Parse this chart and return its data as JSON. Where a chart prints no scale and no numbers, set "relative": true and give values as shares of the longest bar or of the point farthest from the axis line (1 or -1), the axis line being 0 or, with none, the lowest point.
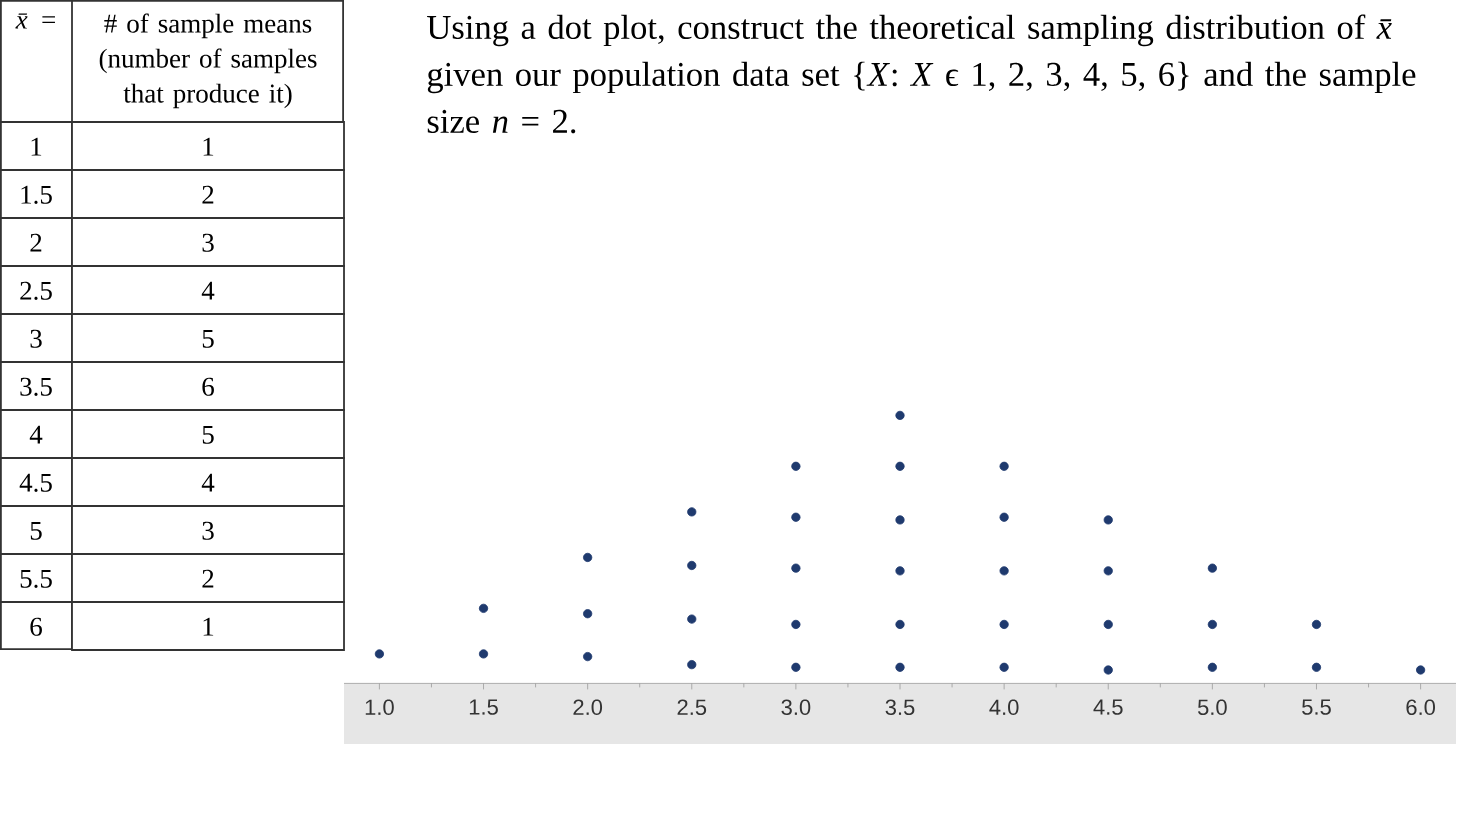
{
  "chart_data": [
    {
      "type": "heatmap",
      "ylabel": "*x̄* =",
      "categories": [
        "# of sample means (number of samples that produce it)"
      ],
      "y_categories": [
        "1",
        "1.5",
        "2",
        "2.5",
        "3",
        "3.5",
        "4",
        "4.5",
        "5",
        "5.5",
        "6"
      ],
      "cells": [
        [
          1
        ],
        [
          2
        ],
        [
          3
        ],
        [
          4
        ],
        [
          5
        ],
        [
          6
        ],
        [
          5
        ],
        [
          4
        ],
        [
          3
        ],
        [
          2
        ],
        [
          1
        ]
      ],
      "data_labels": true
    },
    {
      "type": "scatter",
      "title": "Using a dot plot, construct the theoretical sampling distribution of *x̄* given our population data set {*X*: *X* ϵ 1, 2, 3, 4, 5, 6} and the sample size *n* = 2.",
      "relative": true,
      "marker": "circle",
      "color": "#1f3a6e",
      "xlim": [
        0.83,
        6.17
      ],
      "xticks": [
        {
          "value": 1,
          "label": "1.0"
        },
        1.5,
        {
          "value": 2,
          "label": "2.0"
        },
        2.5,
        {
          "value": 3,
          "label": "3.0"
        },
        3.5,
        {
          "value": 4,
          "label": "4.0"
        },
        4.5,
        {
          "value": 5,
          "label": "5.0"
        },
        5.5,
        {
          "value": 6,
          "label": "6.0"
        }
      ],
      "x": [
        1,
        1.5,
        1.5,
        2,
        2,
        2,
        2.5,
        2.5,
        2.5,
        2.5,
        3,
        3,
        3,
        3,
        3,
        3.5,
        3.5,
        3.5,
        3.5,
        3.5,
        3.5,
        4,
        4,
        4,
        4,
        4,
        4.5,
        4.5,
        4.5,
        4.5,
        5,
        5,
        5,
        5.5,
        5.5,
        6
      ],
      "values": [
        0.11,
        0.11,
        0.28,
        0.1,
        0.26,
        0.47,
        0.07,
        0.24,
        0.44,
        0.64,
        0.06,
        0.22,
        0.43,
        0.62,
        0.81,
        0.06,
        0.22,
        0.42,
        0.61,
        0.81,
        1,
        0.06,
        0.22,
        0.42,
        0.62,
        0.81,
        0.05,
        0.22,
        0.42,
        0.61,
        0.06,
        0.22,
        0.43,
        0.06,
        0.22,
        0.05
      ]
    }
  ]
}
